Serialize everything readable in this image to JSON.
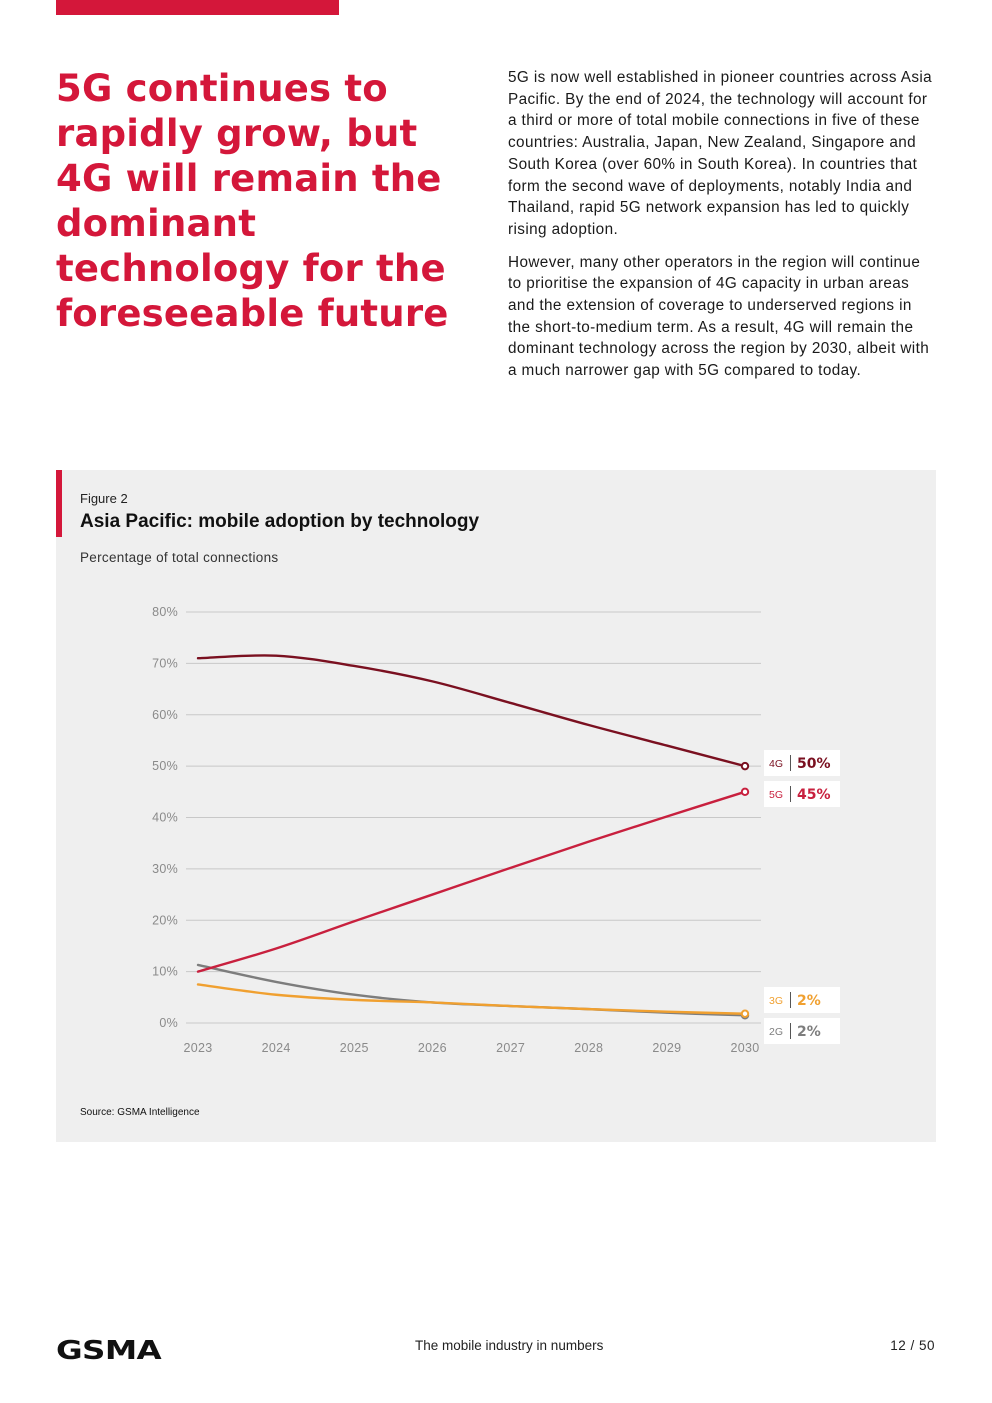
{
  "page": {
    "headline": "5G continues to rapidly grow, but 4G will remain the dominant technology for the foreseeable future",
    "intro_paragraphs": [
      "5G is now well established in pioneer countries across Asia Pacific. By the end of 2024, the technology will account for a third or more of total mobile connections in five of these countries: Australia, Japan, New Zealand, Singapore and South Korea (over 60% in South Korea). In countries that form the second wave of deployments, notably India and Thailand, rapid 5G network expansion has led to quickly rising adoption.",
      "However, many other operators in the region will continue to prioritise the expansion of 4G capacity in urban areas and the extension of coverage to underserved regions in the short-to-medium term. As a result, 4G will remain the dominant technology across the region by 2030, albeit with a much narrower gap with 5G compared to today."
    ]
  },
  "figure": {
    "label": "Figure 2",
    "title": "Asia Pacific: mobile adoption by technology",
    "subtitle": "Percentage of total connections",
    "source": "Source: GSMA Intelligence"
  },
  "chart_data": {
    "type": "line",
    "title": "Asia Pacific: mobile adoption by technology",
    "ylabel": "Percentage of total connections",
    "xlabel": "",
    "x": [
      "2023",
      "2024",
      "2025",
      "2026",
      "2027",
      "2028",
      "2029",
      "2030"
    ],
    "ylim": [
      0,
      80
    ],
    "yticks": [
      0,
      10,
      20,
      30,
      40,
      50,
      60,
      70,
      80
    ],
    "ytick_labels": [
      "0%",
      "10%",
      "20%",
      "30%",
      "40%",
      "50%",
      "60%",
      "70%",
      "80%"
    ],
    "grid": true,
    "series": [
      {
        "name": "4G",
        "color": "#7a1020",
        "values": [
          71,
          71.5,
          69.5,
          66.5,
          62.3,
          58,
          54,
          50
        ],
        "end_label": "50%"
      },
      {
        "name": "5G",
        "color": "#c8203e",
        "values": [
          10,
          14.5,
          19.8,
          25,
          30.2,
          35.3,
          40.2,
          45
        ],
        "end_label": "45%"
      },
      {
        "name": "3G",
        "color": "#f0a030",
        "values": [
          7.5,
          5.5,
          4.5,
          4,
          3.3,
          2.7,
          2.2,
          1.8
        ],
        "end_label": "2%"
      },
      {
        "name": "2G",
        "color": "#7d7d7d",
        "values": [
          11.3,
          8,
          5.5,
          4,
          3.3,
          2.7,
          2,
          1.5
        ],
        "end_label": "2%"
      }
    ]
  },
  "footer": {
    "logo": "GSMA",
    "center_text": "The mobile industry in numbers",
    "page_number": "12 / 50"
  },
  "colors": {
    "brand_red": "#d4173a",
    "panel_background": "#efefef",
    "grid": "#c8c8c8"
  }
}
